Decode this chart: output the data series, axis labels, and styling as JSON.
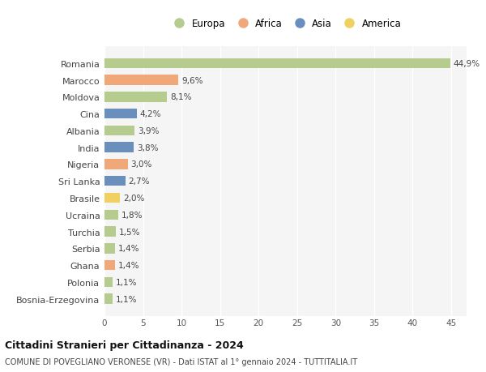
{
  "countries": [
    "Romania",
    "Marocco",
    "Moldova",
    "Cina",
    "Albania",
    "India",
    "Nigeria",
    "Sri Lanka",
    "Brasile",
    "Ucraina",
    "Turchia",
    "Serbia",
    "Ghana",
    "Polonia",
    "Bosnia-Erzegovina"
  ],
  "values": [
    44.9,
    9.6,
    8.1,
    4.2,
    3.9,
    3.8,
    3.0,
    2.7,
    2.0,
    1.8,
    1.5,
    1.4,
    1.4,
    1.1,
    1.1
  ],
  "labels": [
    "44,9%",
    "9,6%",
    "8,1%",
    "4,2%",
    "3,9%",
    "3,8%",
    "3,0%",
    "2,7%",
    "2,0%",
    "1,8%",
    "1,5%",
    "1,4%",
    "1,4%",
    "1,1%",
    "1,1%"
  ],
  "continents": [
    "Europa",
    "Africa",
    "Europa",
    "Asia",
    "Europa",
    "Asia",
    "Africa",
    "Asia",
    "America",
    "Europa",
    "Europa",
    "Europa",
    "Africa",
    "Europa",
    "Europa"
  ],
  "colors": {
    "Europa": "#b5cc8e",
    "Africa": "#f0a878",
    "Asia": "#6a8fbc",
    "America": "#f0d060"
  },
  "xlim": [
    0,
    47
  ],
  "xticks": [
    0,
    5,
    10,
    15,
    20,
    25,
    30,
    35,
    40,
    45
  ],
  "title": "Cittadini Stranieri per Cittadinanza - 2024",
  "subtitle": "COMUNE DI POVEGLIANO VERONESE (VR) - Dati ISTAT al 1° gennaio 2024 - TUTTITALIA.IT",
  "background_color": "#ffffff",
  "plot_bg_color": "#f5f5f5",
  "grid_color": "#ffffff",
  "bar_height": 0.6,
  "legend_entries": [
    "Europa",
    "Africa",
    "Asia",
    "America"
  ]
}
